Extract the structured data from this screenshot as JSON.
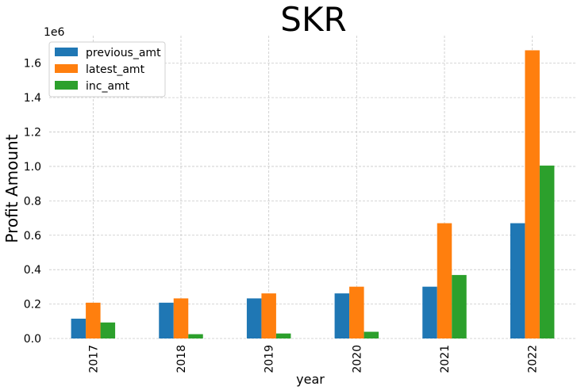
{
  "chart_data": {
    "type": "bar",
    "title": "SKR",
    "xlabel": "year",
    "ylabel": "Profit Amount",
    "y_scale_label": "1e6",
    "y_scale": 1000000,
    "categories": [
      "2017",
      "2018",
      "2019",
      "2020",
      "2021",
      "2022"
    ],
    "series": [
      {
        "name": "previous_amt",
        "color": "#1f77b4",
        "values": [
          115000,
          208000,
          233000,
          262000,
          301000,
          670000
        ]
      },
      {
        "name": "latest_amt",
        "color": "#ff7f0e",
        "values": [
          208000,
          233000,
          262000,
          301000,
          670000,
          1675000
        ]
      },
      {
        "name": "inc_amt",
        "color": "#2ca02c",
        "values": [
          93000,
          25000,
          29000,
          39000,
          369000,
          1005000
        ]
      }
    ],
    "ylim": [
      0,
      1760000
    ],
    "yticks": [
      0.0,
      0.2,
      0.4,
      0.6,
      0.8,
      1.0,
      1.2,
      1.4,
      1.6
    ],
    "ytick_labels": [
      "0.0",
      "0.2",
      "0.4",
      "0.6",
      "0.8",
      "1.0",
      "1.2",
      "1.4",
      "1.6"
    ],
    "grid": true,
    "legend_position": "top-left"
  }
}
